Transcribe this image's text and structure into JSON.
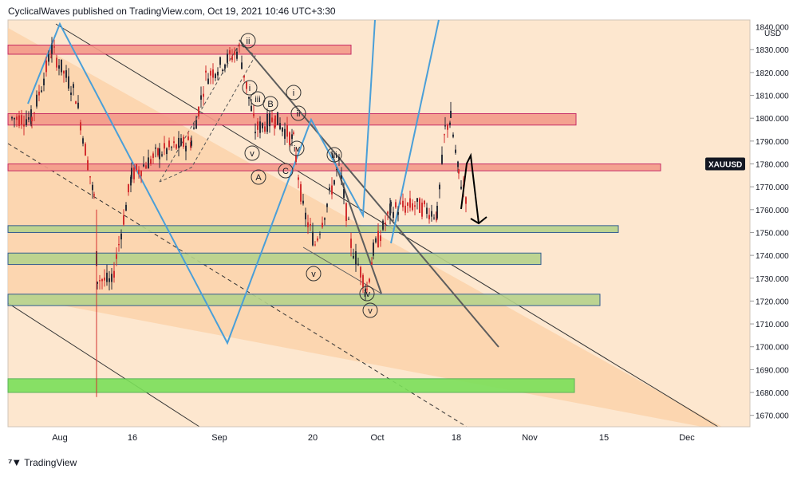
{
  "header": {
    "publisher": "CyclicalWaves published on TradingView.com, Oct 19, 2021 10:46 UTC+3:30"
  },
  "footer": {
    "brand": "TradingView",
    "logo_icon": "tradingview-logo-icon"
  },
  "chart_data": {
    "type": "candlestick",
    "symbol": "XAUUSD",
    "currency": "USD",
    "ylim": [
      1665,
      1843
    ],
    "y_ticks": [
      "1670.000",
      "1680.000",
      "1690.000",
      "1700.000",
      "1710.000",
      "1720.000",
      "1730.000",
      "1740.000",
      "1750.000",
      "1760.000",
      "1770.000",
      "1780.000",
      "1790.000",
      "1800.000",
      "1810.000",
      "1820.000",
      "1830.000"
    ],
    "y_tick_top_partial": "1840.000",
    "x_ticks": [
      "Aug",
      "16",
      "Sep",
      "20",
      "Oct",
      "18",
      "Nov",
      "15",
      "Dec"
    ],
    "last_price": 1780,
    "colors": {
      "background": "#fde7cf",
      "channel_fill": "#fbd2a8",
      "resistance_zone": "#f49b8a",
      "support_zone": "#b7d38c",
      "strong_support_zone": "#7be05a",
      "wave_path": "#4a9fd8",
      "candle_up": "#2a2e39",
      "candle_down": "#d32f2f",
      "trend_line": "#5d5d5d"
    },
    "zones": [
      {
        "type": "resistance",
        "from": 1828,
        "to": 1832
      },
      {
        "type": "resistance",
        "from": 1797,
        "to": 1802
      },
      {
        "type": "resistance",
        "from": 1777,
        "to": 1780
      },
      {
        "type": "support",
        "from": 1750,
        "to": 1753
      },
      {
        "type": "support",
        "from": 1736,
        "to": 1741
      },
      {
        "type": "support",
        "from": 1718,
        "to": 1723
      },
      {
        "type": "strong_support",
        "from": 1680,
        "to": 1686
      }
    ],
    "wave_labels": [
      "ii",
      "i",
      "iii",
      "v",
      "A",
      "B",
      "C",
      "i",
      "iv",
      "ii",
      "iii",
      "v",
      "iv",
      "v"
    ],
    "arrow_direction": "down",
    "arrow_target": 1754
  }
}
